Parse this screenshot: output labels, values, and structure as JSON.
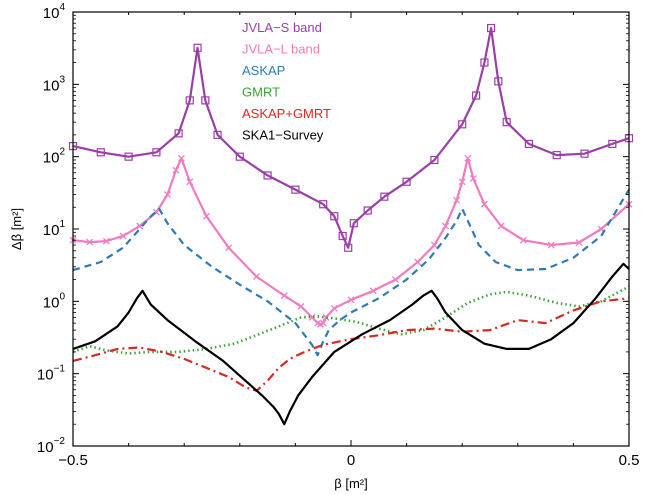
{
  "chart_data": {
    "type": "line",
    "title": "",
    "xlabel": "β [m²]",
    "ylabel": "Δβ [m²]",
    "xlim": [
      -0.5,
      0.5
    ],
    "ylim": [
      0.01,
      10000
    ],
    "yscale": "log",
    "grid": false,
    "legend_position": "top-center",
    "x_ticks": [
      {
        "value": -0.5,
        "label": "−0.5"
      },
      {
        "value": 0,
        "label": "0"
      },
      {
        "value": 0.5,
        "label": "0.5"
      }
    ],
    "y_ticks": [
      {
        "value": 0.01,
        "base": "10",
        "exp": "−2"
      },
      {
        "value": 0.1,
        "base": "10",
        "exp": "−1"
      },
      {
        "value": 1,
        "base": "10",
        "exp": "0"
      },
      {
        "value": 10,
        "base": "10",
        "exp": "1"
      },
      {
        "value": 100,
        "base": "10",
        "exp": "2"
      },
      {
        "value": 1000,
        "base": "10",
        "exp": "3"
      },
      {
        "value": 10000,
        "base": "10",
        "exp": "4"
      }
    ],
    "series": [
      {
        "name": "JVLA−S band",
        "color": "#9b3fa8",
        "style": "solid",
        "marker": "square",
        "x": [
          -0.5,
          -0.45,
          -0.4,
          -0.35,
          -0.31,
          -0.29,
          -0.276,
          -0.262,
          -0.24,
          -0.2,
          -0.15,
          -0.1,
          -0.05,
          -0.03,
          -0.015,
          -0.005,
          0.005,
          0.03,
          0.06,
          0.1,
          0.15,
          0.2,
          0.225,
          0.24,
          0.252,
          0.265,
          0.28,
          0.32,
          0.37,
          0.42,
          0.47,
          0.5
        ],
        "y": [
          140,
          115,
          100,
          115,
          210,
          600,
          3200,
          600,
          200,
          100,
          55,
          35,
          22,
          15,
          8,
          5.5,
          12,
          18,
          28,
          45,
          90,
          280,
          700,
          2000,
          6000,
          1100,
          300,
          150,
          105,
          110,
          150,
          180
        ]
      },
      {
        "name": "JVLA−L band",
        "color": "#f07cc0",
        "style": "solid",
        "marker": "x",
        "x": [
          -0.5,
          -0.47,
          -0.44,
          -0.41,
          -0.38,
          -0.35,
          -0.33,
          -0.315,
          -0.305,
          -0.29,
          -0.26,
          -0.22,
          -0.17,
          -0.12,
          -0.09,
          -0.07,
          -0.06,
          -0.055,
          -0.05,
          -0.045,
          -0.03,
          0,
          0.04,
          0.08,
          0.12,
          0.15,
          0.17,
          0.19,
          0.2,
          0.21,
          0.22,
          0.24,
          0.27,
          0.31,
          0.36,
          0.41,
          0.45,
          0.5
        ],
        "y": [
          7,
          6.6,
          6.8,
          8,
          11,
          17,
          30,
          65,
          95,
          45,
          15,
          5.5,
          2.2,
          1.2,
          0.85,
          0.6,
          0.5,
          0.48,
          0.5,
          0.6,
          0.8,
          1.05,
          1.4,
          2,
          3.5,
          6,
          11,
          25,
          45,
          95,
          50,
          22,
          11,
          7,
          6,
          6.5,
          10,
          22
        ]
      },
      {
        "name": "ASKAP",
        "color": "#2f7ab5",
        "style": "dashed",
        "marker": "none",
        "x": [
          -0.5,
          -0.45,
          -0.41,
          -0.38,
          -0.36,
          -0.345,
          -0.33,
          -0.3,
          -0.25,
          -0.2,
          -0.15,
          -0.1,
          -0.07,
          -0.06,
          -0.05,
          -0.04,
          -0.02,
          0,
          0.05,
          0.1,
          0.14,
          0.17,
          0.19,
          0.2,
          0.21,
          0.23,
          0.26,
          0.3,
          0.35,
          0.4,
          0.45,
          0.5
        ],
        "y": [
          2.7,
          3.5,
          5.5,
          10,
          15,
          19,
          12,
          6,
          3,
          1.7,
          1,
          0.5,
          0.25,
          0.18,
          0.28,
          0.4,
          0.55,
          0.7,
          1.1,
          2,
          3.8,
          7.5,
          13,
          19,
          13,
          6,
          3.5,
          2.7,
          2.8,
          4,
          8,
          35
        ]
      },
      {
        "name": "GMRT",
        "color": "#3aa33a",
        "style": "dotted",
        "marker": "none",
        "x": [
          -0.5,
          -0.47,
          -0.44,
          -0.4,
          -0.36,
          -0.31,
          -0.26,
          -0.21,
          -0.17,
          -0.13,
          -0.09,
          -0.06,
          -0.03,
          0.01,
          0.05,
          0.09,
          0.13,
          0.17,
          0.21,
          0.25,
          0.28,
          0.32,
          0.37,
          0.41,
          0.45,
          0.5
        ],
        "y": [
          0.2,
          0.24,
          0.21,
          0.19,
          0.2,
          0.2,
          0.22,
          0.26,
          0.34,
          0.45,
          0.6,
          0.62,
          0.58,
          0.52,
          0.42,
          0.35,
          0.4,
          0.6,
          0.95,
          1.25,
          1.35,
          1.2,
          0.95,
          0.85,
          1.0,
          1.6
        ]
      },
      {
        "name": "ASKAP+GMRT",
        "color": "#d42a22",
        "style": "dashdot",
        "marker": "none",
        "x": [
          -0.5,
          -0.46,
          -0.42,
          -0.38,
          -0.34,
          -0.3,
          -0.26,
          -0.22,
          -0.19,
          -0.17,
          -0.15,
          -0.13,
          -0.11,
          -0.09,
          -0.07,
          -0.05,
          -0.02,
          0,
          0.05,
          0.1,
          0.15,
          0.2,
          0.25,
          0.3,
          0.35,
          0.4,
          0.45,
          0.5
        ],
        "y": [
          0.15,
          0.18,
          0.22,
          0.23,
          0.2,
          0.16,
          0.12,
          0.09,
          0.065,
          0.058,
          0.08,
          0.12,
          0.16,
          0.19,
          0.22,
          0.25,
          0.28,
          0.3,
          0.34,
          0.4,
          0.42,
          0.38,
          0.4,
          0.55,
          0.5,
          0.75,
          1.0,
          1.1
        ]
      },
      {
        "name": "SKA1−Survey",
        "color": "#000000",
        "style": "solid",
        "marker": "none",
        "x": [
          -0.5,
          -0.46,
          -0.42,
          -0.4,
          -0.385,
          -0.375,
          -0.36,
          -0.33,
          -0.28,
          -0.23,
          -0.19,
          -0.16,
          -0.14,
          -0.13,
          -0.12,
          -0.11,
          -0.095,
          -0.07,
          -0.03,
          0.02,
          0.07,
          0.11,
          0.13,
          0.145,
          0.155,
          0.17,
          0.2,
          0.24,
          0.28,
          0.32,
          0.36,
          0.4,
          0.44,
          0.47,
          0.49,
          0.5
        ],
        "y": [
          0.22,
          0.28,
          0.45,
          0.7,
          1.1,
          1.4,
          0.9,
          0.55,
          0.28,
          0.15,
          0.08,
          0.05,
          0.035,
          0.028,
          0.02,
          0.03,
          0.05,
          0.09,
          0.2,
          0.35,
          0.55,
          0.9,
          1.2,
          1.4,
          1.1,
          0.7,
          0.4,
          0.26,
          0.22,
          0.22,
          0.3,
          0.5,
          1.1,
          2.2,
          3.3,
          2.8
        ]
      }
    ]
  }
}
